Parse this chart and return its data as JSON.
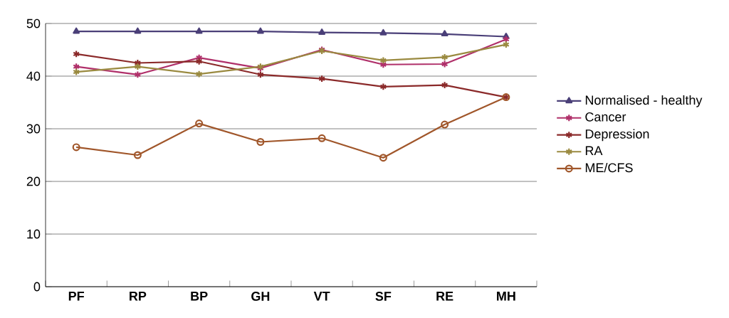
{
  "chart_data": {
    "type": "line",
    "categories": [
      "PF",
      "RP",
      "BP",
      "GH",
      "VT",
      "SF",
      "RE",
      "MH"
    ],
    "series": [
      {
        "name": "Normalised - healthy",
        "color": "#4a3f78",
        "marker": "triangle",
        "values": [
          48.5,
          48.5,
          48.5,
          48.5,
          48.3,
          48.2,
          48,
          47.5
        ]
      },
      {
        "name": "Cancer",
        "color": "#b0306a",
        "marker": "cross",
        "values": [
          41.8,
          40.3,
          43.5,
          41.5,
          45,
          42.2,
          42.3,
          47
        ]
      },
      {
        "name": "Depression",
        "color": "#8b2a2a",
        "marker": "cross",
        "values": [
          44.2,
          42.5,
          42.8,
          40.3,
          39.5,
          38,
          38.3,
          36
        ]
      },
      {
        "name": "RA",
        "color": "#9a8a40",
        "marker": "cross",
        "values": [
          40.8,
          41.8,
          40.4,
          41.8,
          44.8,
          43,
          43.6,
          46
        ]
      },
      {
        "name": "ME/CFS",
        "color": "#a0562a",
        "marker": "circle",
        "values": [
          26.5,
          25,
          31,
          27.5,
          28.2,
          24.5,
          30.8,
          36
        ]
      }
    ],
    "ylim": [
      0,
      50
    ],
    "yticks": [
      0,
      10,
      20,
      30,
      40,
      50
    ],
    "grid": "y",
    "legend": "right",
    "line_style": "solid"
  }
}
